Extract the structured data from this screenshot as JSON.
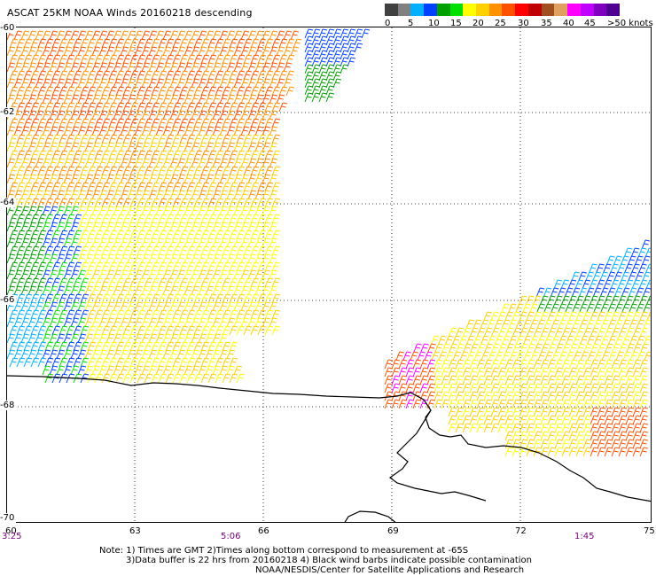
{
  "title": "ASCAT 25KM NOAA Winds 20160218 descending",
  "legend": {
    "colors": [
      "#404040",
      "#808080",
      "#00b0ff",
      "#0040ff",
      "#00a000",
      "#00e000",
      "#ffff00",
      "#ffd000",
      "#ff9000",
      "#ff5000",
      "#ff0000",
      "#c00000",
      "#a05020",
      "#e0a060",
      "#ff00ff",
      "#c000ff",
      "#8000c0",
      "#500090"
    ],
    "labels": [
      "0",
      "5",
      "10",
      "15",
      "20",
      "25",
      "30",
      "35",
      "40",
      "45",
      ">50 knots"
    ]
  },
  "axes": {
    "lat_labels": [
      "-60",
      "-62",
      "-64",
      "-66",
      "-68",
      "-70"
    ],
    "lon_labels": [
      "60",
      "63",
      "66",
      "69",
      "72",
      "75"
    ]
  },
  "times": [
    "3:25",
    "5:06",
    "1:45"
  ],
  "notes": [
    "Note: 1) Times are GMT 2)Times along bottom correspond to measurement at -65S",
    "3)Data buffer is 22 hrs from 20160218 4) Black wind barbs indicate possible contamination",
    "NOAA/NESDIS/Center for Satellite Applications and Research"
  ]
}
